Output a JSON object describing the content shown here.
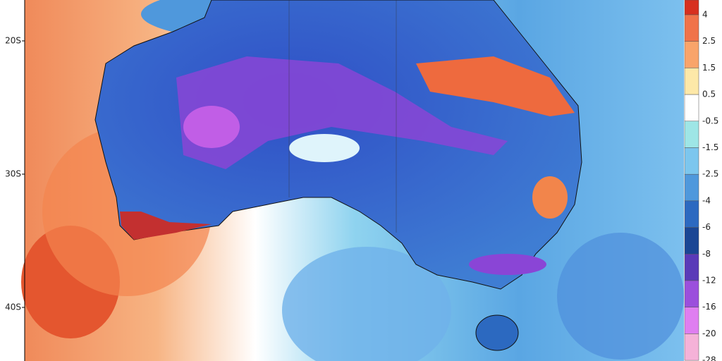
{
  "map": {
    "lat_labels": [
      "20S",
      "30S",
      "40S"
    ],
    "colorbar": [
      {
        "label": "4",
        "color": "#d7301f"
      },
      {
        "label": "2.5",
        "color": "#f0734a"
      },
      {
        "label": "1.5",
        "color": "#f9a46a"
      },
      {
        "label": "0.5",
        "color": "#fde8a8"
      },
      {
        "label": "-0.5",
        "color": "#ffffff"
      },
      {
        "label": "-1.5",
        "color": "#9ee6e6"
      },
      {
        "label": "-2.5",
        "color": "#7cc6ee"
      },
      {
        "label": "-4",
        "color": "#4f98dc"
      },
      {
        "label": "-6",
        "color": "#2c69c0"
      },
      {
        "label": "-8",
        "color": "#1a4694"
      },
      {
        "label": "-12",
        "color": "#5a3ab8"
      },
      {
        "label": "-16",
        "color": "#9b4fdc"
      },
      {
        "label": "-20",
        "color": "#df7ef0"
      },
      {
        "label": "-28",
        "color": "#f5b2d8"
      }
    ]
  }
}
